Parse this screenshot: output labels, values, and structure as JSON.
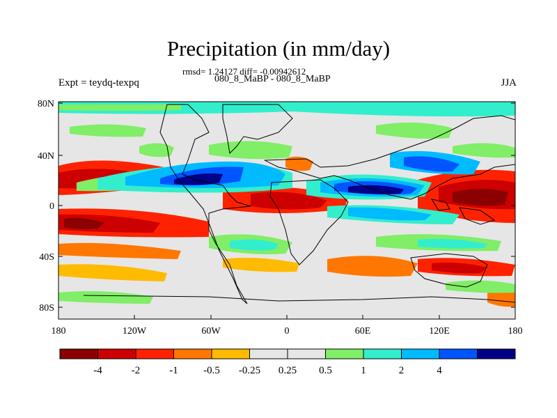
{
  "title": "Precipitation (in mm/day)",
  "subtitle": "rmsd= 1.24127 diff= -0.00942612",
  "case": "080_8_MaBP - 080_8_MaBP",
  "left_label": "Expt = teydq-texpq",
  "right_label": "JJA",
  "map": {
    "y_ticks": [
      "80N",
      "40N",
      "0",
      "40S",
      "80S"
    ],
    "x_ticks": [
      "180",
      "120W",
      "60W",
      "0",
      "60E",
      "120E",
      "180"
    ]
  },
  "colorbar": {
    "colors": [
      "#8b0000",
      "#cc0000",
      "#ff2200",
      "#ff7700",
      "#ffbb00",
      "#e6e6e6",
      "#e6e6e6",
      "#80ee66",
      "#33eecc",
      "#00bbff",
      "#0055ff",
      "#000088"
    ],
    "labels": [
      "-4",
      "-2",
      "-1",
      "-0.5",
      "-0.25",
      "0.25",
      "0.5",
      "1",
      "2",
      "4"
    ]
  }
}
